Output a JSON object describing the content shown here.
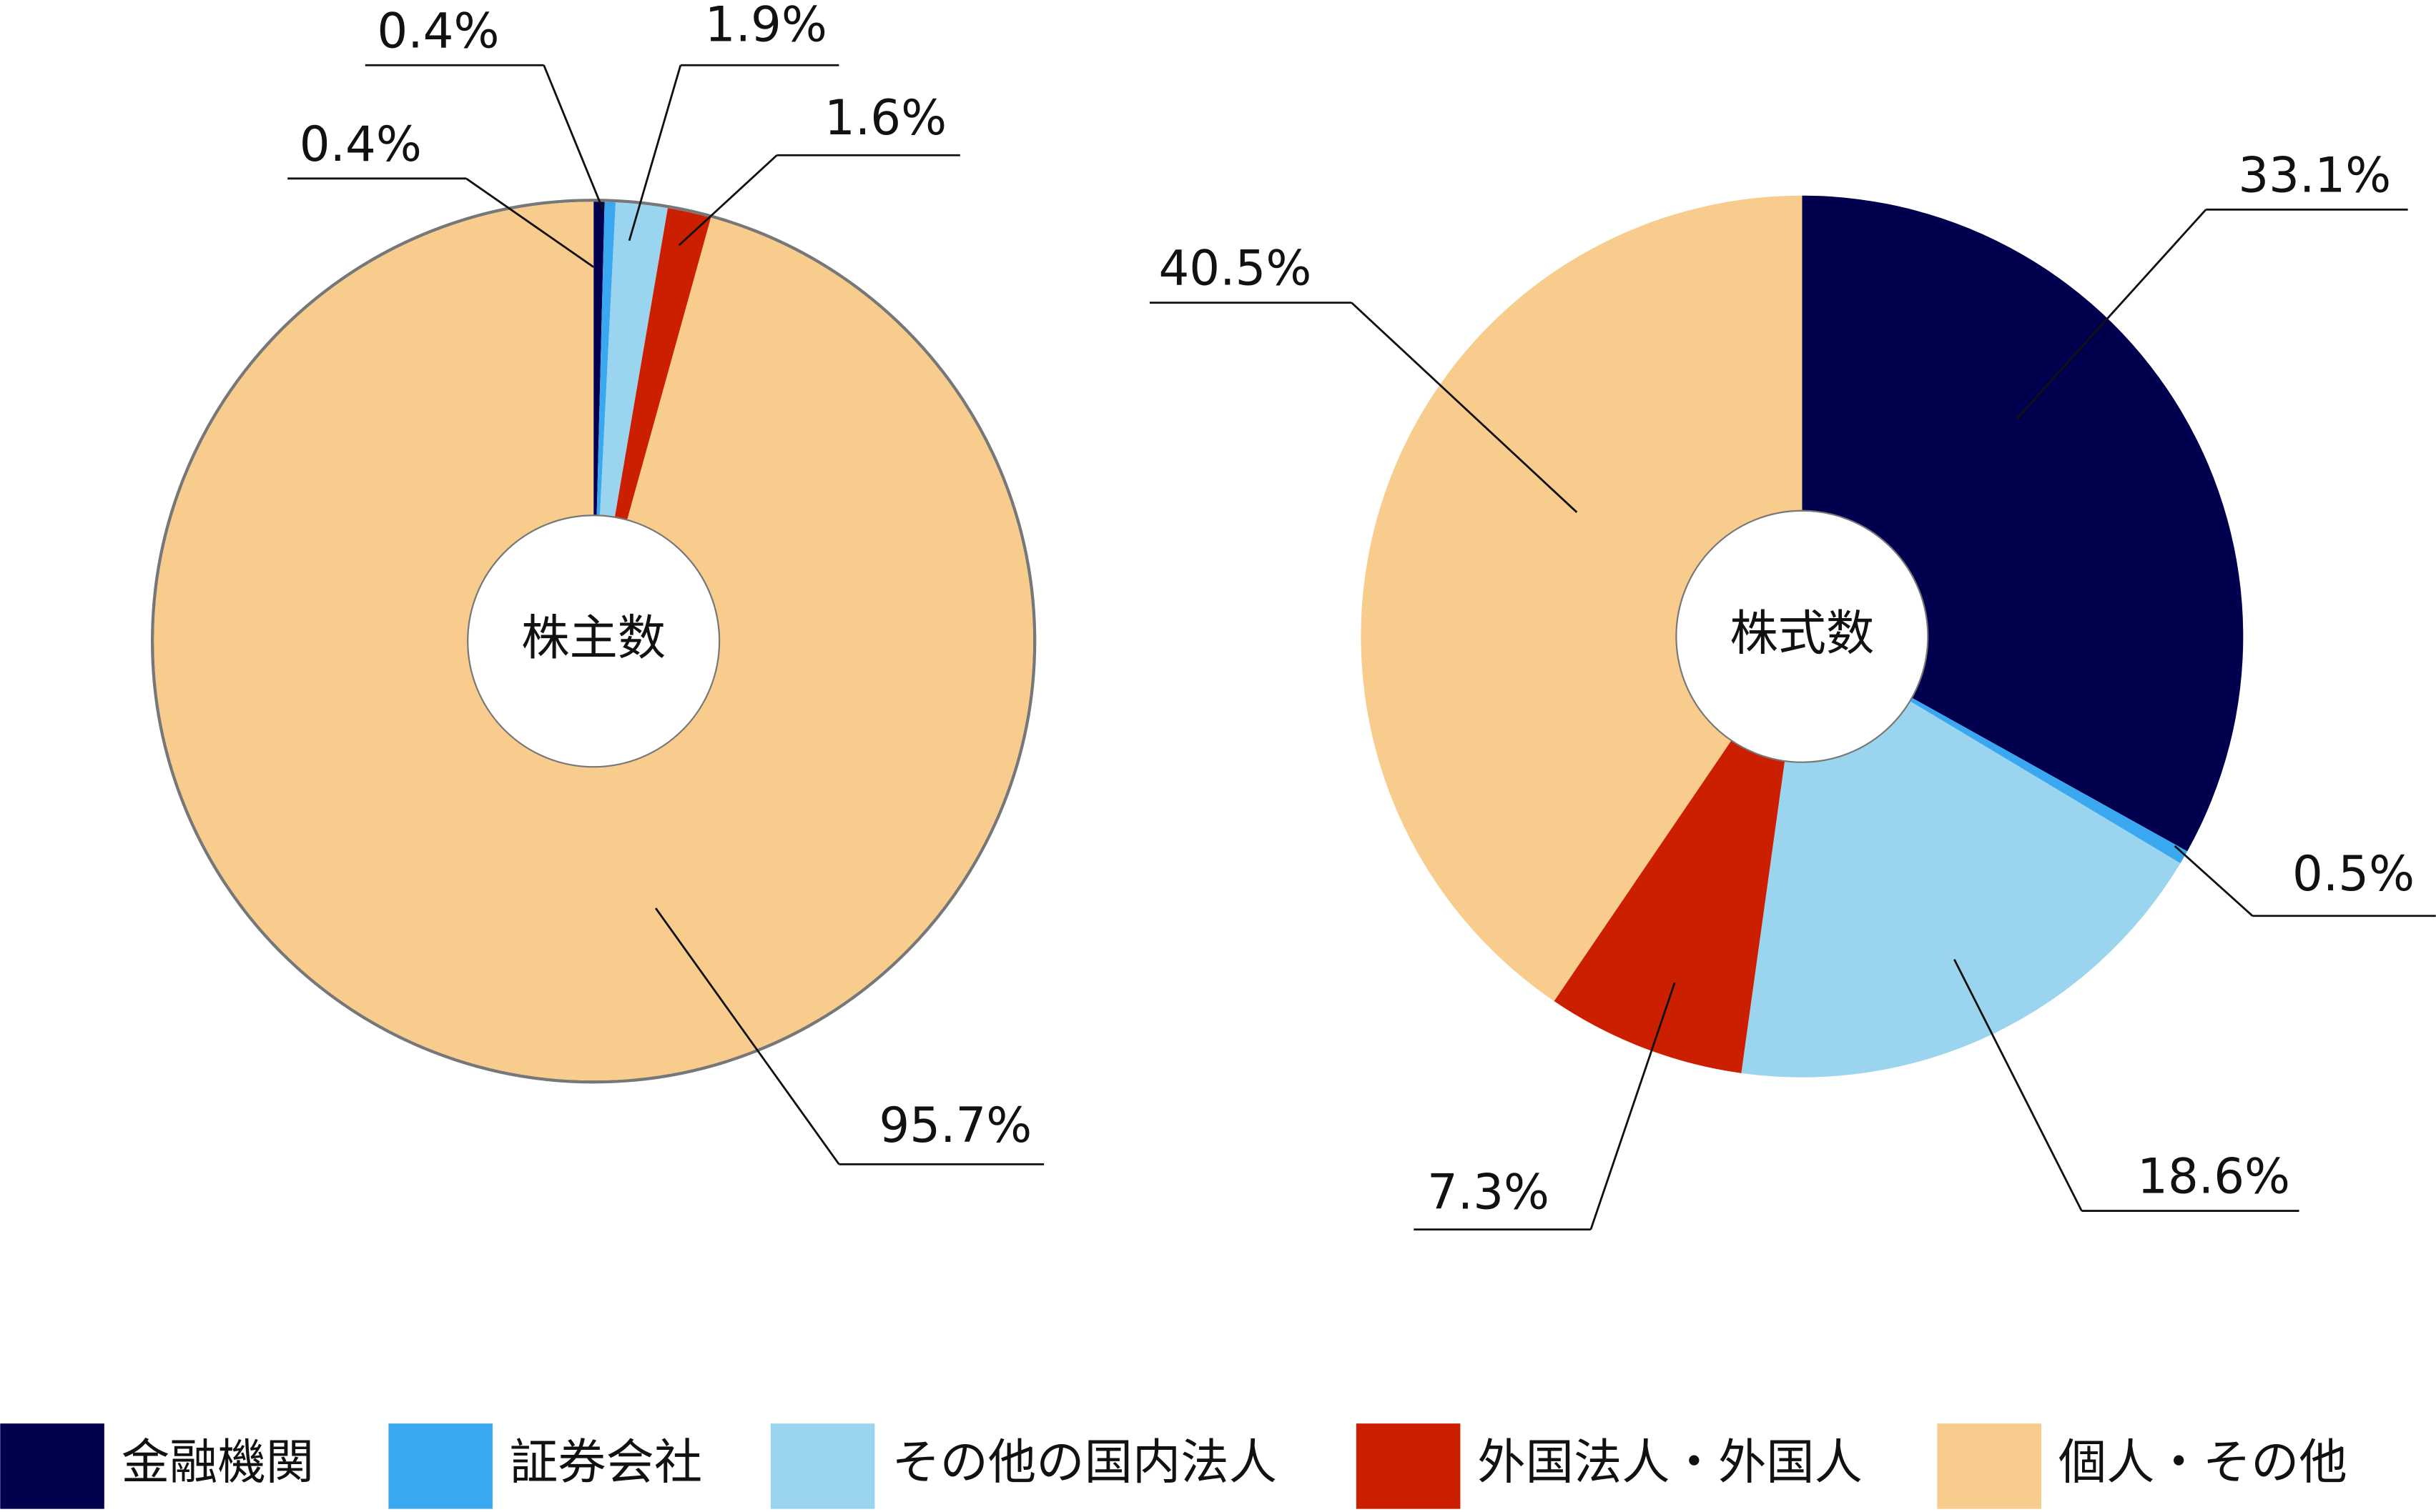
{
  "chart_data": [
    {
      "type": "pie",
      "center_label": "株主数",
      "categories": [
        "金融機関",
        "証券会社",
        "その他の国内法人",
        "外国法人・外国人",
        "個人・その他"
      ],
      "colors": [
        "#00004f",
        "#3aa8f0",
        "#9ad4ee",
        "#cc1f00",
        "#f8cc8c"
      ],
      "values": [
        0.4,
        0.4,
        1.9,
        1.6,
        95.7
      ],
      "value_labels": [
        "0.4%",
        "0.4%",
        "1.9%",
        "1.6%",
        "95.7%"
      ]
    },
    {
      "type": "pie",
      "center_label": "株式数",
      "categories": [
        "金融機関",
        "証券会社",
        "その他の国内法人",
        "外国法人・外国人",
        "個人・その他"
      ],
      "colors": [
        "#00004f",
        "#3aa8f0",
        "#9ad4ee",
        "#cc1f00",
        "#f8cc8c"
      ],
      "values": [
        33.1,
        0.5,
        18.6,
        7.3,
        40.5
      ],
      "value_labels": [
        "33.1%",
        "0.5%",
        "18.6%",
        "7.3%",
        "40.5%"
      ]
    }
  ]
}
